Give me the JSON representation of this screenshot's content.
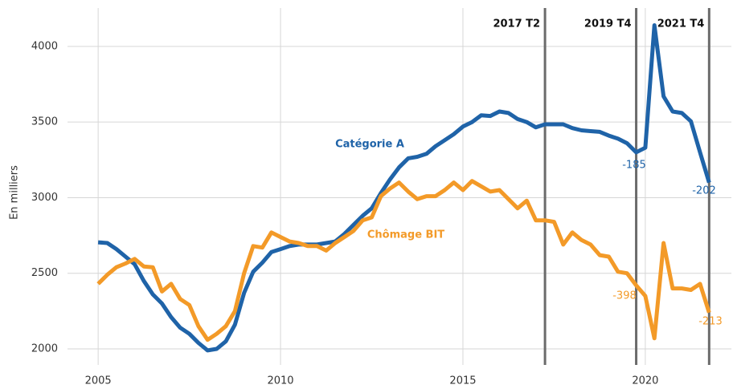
{
  "chart_data": {
    "type": "line",
    "ylabel": "En milliers",
    "x": [
      2005,
      2005.25,
      2005.5,
      2005.75,
      2006,
      2006.25,
      2006.5,
      2006.75,
      2007,
      2007.25,
      2007.5,
      2007.75,
      2008,
      2008.25,
      2008.5,
      2008.75,
      2009,
      2009.25,
      2009.5,
      2009.75,
      2010,
      2010.25,
      2010.5,
      2010.75,
      2011,
      2011.25,
      2011.5,
      2011.75,
      2012,
      2012.25,
      2012.5,
      2012.75,
      2013,
      2013.25,
      2013.5,
      2013.75,
      2014,
      2014.25,
      2014.5,
      2014.75,
      2015,
      2015.25,
      2015.5,
      2015.75,
      2016,
      2016.25,
      2016.5,
      2016.75,
      2017,
      2017.25,
      2017.5,
      2017.75,
      2018,
      2018.25,
      2018.5,
      2018.75,
      2019,
      2019.25,
      2019.5,
      2019.75,
      2020,
      2020.25,
      2020.5,
      2020.75,
      2021,
      2021.25,
      2021.5,
      2021.75
    ],
    "series": [
      {
        "name": "Catégorie A",
        "color": "#1f63a8",
        "values": [
          2705,
          2700,
          2660,
          2610,
          2560,
          2450,
          2360,
          2300,
          2210,
          2140,
          2100,
          2040,
          1990,
          2000,
          2050,
          2160,
          2370,
          2510,
          2570,
          2640,
          2660,
          2680,
          2690,
          2690,
          2690,
          2700,
          2710,
          2760,
          2820,
          2880,
          2930,
          3030,
          3120,
          3200,
          3260,
          3270,
          3290,
          3340,
          3380,
          3420,
          3470,
          3500,
          3545,
          3540,
          3570,
          3560,
          3520,
          3500,
          3465,
          3485,
          3485,
          3485,
          3460,
          3445,
          3440,
          3435,
          3410,
          3390,
          3360,
          3300,
          3330,
          4140,
          3670,
          3570,
          3560,
          3505,
          3300,
          3100
        ]
      },
      {
        "name": "Chômage BIT",
        "color": "#f39a28",
        "values": [
          2430,
          2490,
          2540,
          2565,
          2595,
          2545,
          2540,
          2380,
          2430,
          2330,
          2290,
          2150,
          2060,
          2100,
          2150,
          2250,
          2500,
          2680,
          2670,
          2770,
          2740,
          2710,
          2700,
          2680,
          2680,
          2650,
          2700,
          2740,
          2780,
          2850,
          2870,
          3010,
          3060,
          3100,
          3040,
          2990,
          3010,
          3010,
          3050,
          3100,
          3050,
          3110,
          3075,
          3040,
          3050,
          2990,
          2930,
          2980,
          2850,
          2850,
          2840,
          2690,
          2770,
          2720,
          2690,
          2620,
          2610,
          2510,
          2500,
          2420,
          2350,
          2070,
          2700,
          2400,
          2400,
          2390,
          2430,
          2240
        ]
      }
    ],
    "annotations": [
      "-185",
      "-202",
      "-398",
      "-213"
    ],
    "vlines": [
      {
        "x": 2017.25,
        "label": "2017 T2"
      },
      {
        "x": 2019.75,
        "label": "2019 T4"
      },
      {
        "x": 2021.75,
        "label": "2021 T4"
      }
    ],
    "xlim": [
      2004.16,
      2022.36
    ],
    "xticks": [
      2005,
      2010,
      2015,
      2020
    ],
    "ylim": [
      1894,
      4254
    ],
    "yticks": [
      2000,
      2500,
      3000,
      3500,
      4000
    ],
    "grid": true
  }
}
